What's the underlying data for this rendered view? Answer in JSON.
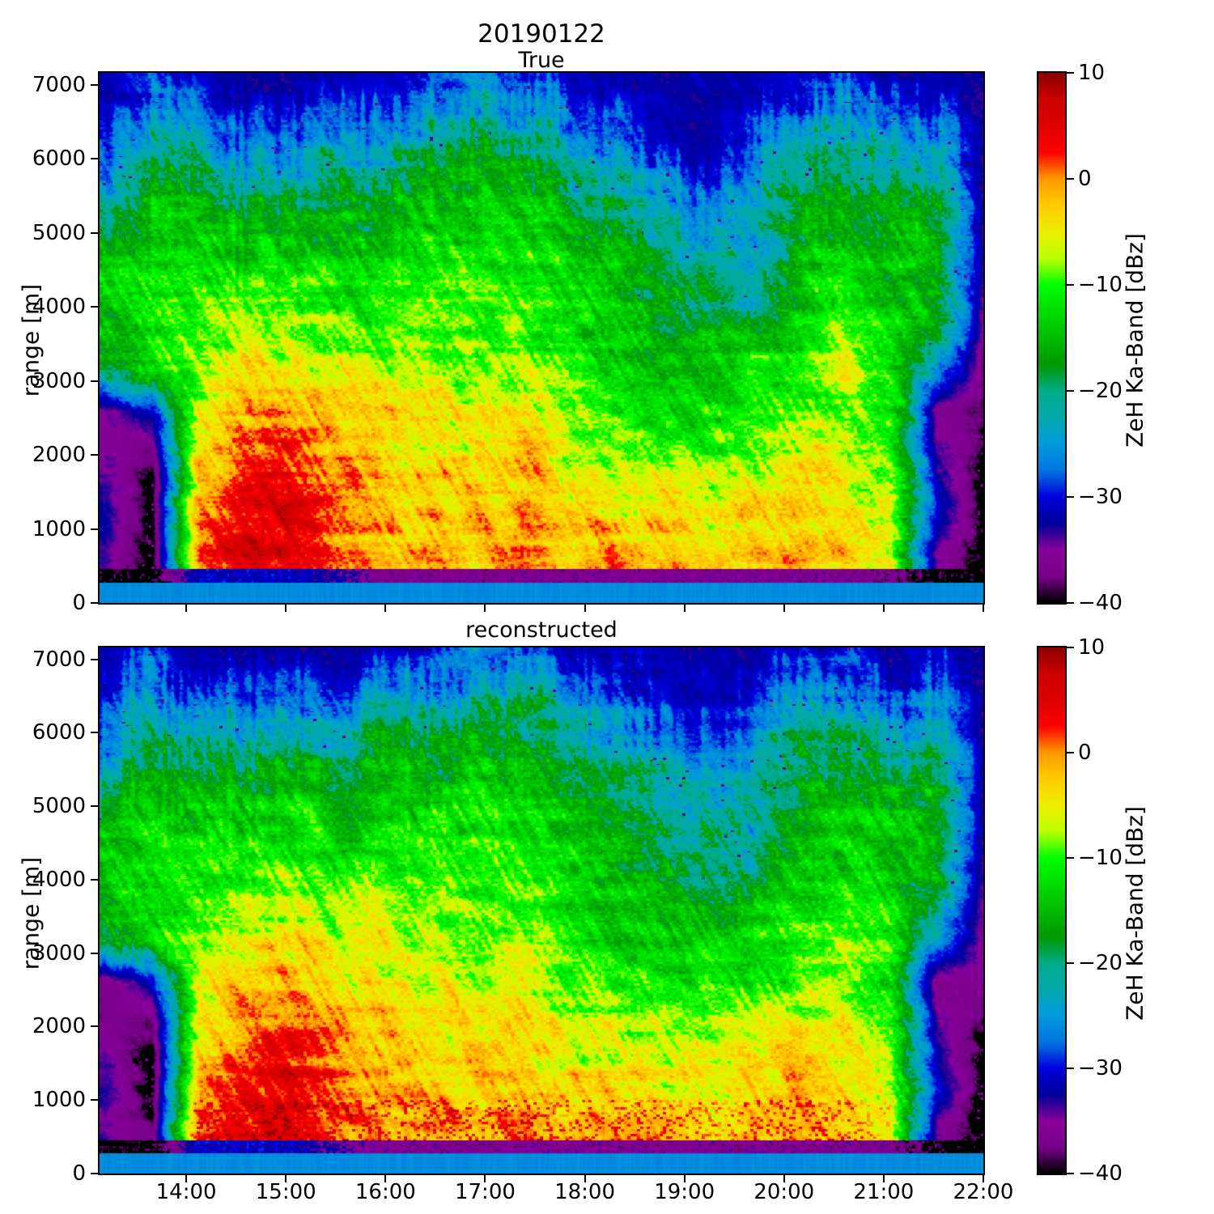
{
  "title": "20190122",
  "panels": [
    {
      "subtitle": "True",
      "ylabel": "range [m]"
    },
    {
      "subtitle": "reconstructed",
      "ylabel": "range [m]"
    }
  ],
  "axes": {
    "ytick_values": [
      0,
      1000,
      2000,
      3000,
      4000,
      5000,
      6000,
      7000
    ],
    "ytick_labels": [
      "0",
      "1000",
      "2000",
      "3000",
      "4000",
      "5000",
      "6000",
      "7000"
    ],
    "xtick_hours": [
      14,
      15,
      16,
      17,
      18,
      19,
      20,
      21,
      22
    ],
    "xtick_labels": [
      "14:00",
      "15:00",
      "16:00",
      "17:00",
      "18:00",
      "19:00",
      "20:00",
      "21:00",
      "22:00"
    ]
  },
  "colorbar": {
    "label": "ZeH Ka-Band [dBz]",
    "vmin": -40,
    "vmax": 10,
    "tick_values": [
      10,
      0,
      -10,
      -20,
      -30,
      -40
    ],
    "tick_labels": [
      "10",
      "0",
      "−10",
      "−20",
      "−30",
      "−40"
    ],
    "stops": [
      [
        -40,
        "#000000"
      ],
      [
        -37.5,
        "#770088"
      ],
      [
        -35,
        "#880099"
      ],
      [
        -32.5,
        "#000099"
      ],
      [
        -30,
        "#0000dd"
      ],
      [
        -27.5,
        "#0077dd"
      ],
      [
        -25,
        "#0099dd"
      ],
      [
        -22.5,
        "#00aaaa"
      ],
      [
        -20,
        "#00aa88"
      ],
      [
        -17.5,
        "#009900"
      ],
      [
        -15,
        "#00bb00"
      ],
      [
        -12.5,
        "#00dd00"
      ],
      [
        -10,
        "#00ff00"
      ],
      [
        -7.5,
        "#bbff00"
      ],
      [
        -5,
        "#eeee00"
      ],
      [
        -2.5,
        "#ffcc00"
      ],
      [
        0,
        "#ff9900"
      ],
      [
        2.5,
        "#ff0000"
      ],
      [
        5,
        "#dd0000"
      ],
      [
        7.5,
        "#cc0000"
      ],
      [
        10,
        "#8b0000"
      ]
    ]
  },
  "chart_data": {
    "type": "heatmap",
    "title": "20190122",
    "xlabel_ticks": [
      "14:00",
      "15:00",
      "16:00",
      "17:00",
      "18:00",
      "19:00",
      "20:00",
      "21:00",
      "22:00"
    ],
    "ylabel": "range [m]",
    "value_label": "ZeH Ka-Band [dBz]",
    "x_range_hours": [
      13.13,
      22.0
    ],
    "y_range_m": [
      0,
      7160
    ],
    "value_range_dbz": [
      -40,
      10
    ],
    "x_time_hours": [
      13.2,
      13.66,
      14.13,
      14.59,
      15.05,
      15.52,
      15.98,
      16.44,
      16.91,
      17.37,
      17.83,
      18.29,
      18.76,
      19.22,
      19.68,
      20.15,
      20.61,
      21.07,
      21.54,
      22.0
    ],
    "y_height_m": [
      150,
      400,
      700,
      1100,
      1600,
      2100,
      2600,
      3100,
      3700,
      4300,
      4900,
      5500,
      6200,
      7000
    ],
    "panels": [
      {
        "name": "True",
        "values_dbz": [
          [
            -26,
            -26,
            -26,
            -26,
            -26,
            -26,
            -26,
            -26,
            -26,
            -26,
            -26,
            -26,
            -26,
            -26,
            -26,
            -26,
            -26,
            -26,
            -26,
            -26
          ],
          [
            -40,
            -40,
            -31,
            -31,
            -31,
            -33,
            -36,
            -36,
            -36,
            -36,
            -36,
            -36,
            -36,
            -36,
            -36,
            -36,
            -36,
            -37,
            -40,
            -40
          ],
          [
            -34,
            -40,
            1,
            6,
            6,
            1,
            -1,
            -1,
            -2,
            0,
            -2,
            -1,
            -2,
            -3,
            -2,
            -1,
            -3,
            -6,
            -35,
            -40
          ],
          [
            -32,
            -40,
            0,
            5,
            6,
            1,
            -2,
            -2,
            -2,
            -1,
            -3,
            -3,
            -4,
            -5,
            -3,
            -2,
            -4,
            -6,
            -30,
            -40
          ],
          [
            -34,
            -40,
            -2,
            3,
            5,
            0,
            -2,
            -3,
            -3,
            -2,
            -5,
            -5,
            -6,
            -7,
            -5,
            -4,
            -5,
            -8,
            -32,
            -40
          ],
          [
            -36,
            -37,
            -4,
            1,
            3,
            -1,
            -3,
            -4,
            -4,
            -3,
            -7,
            -8,
            -9,
            -10,
            -8,
            -6,
            -6,
            -10,
            -34,
            -39
          ],
          [
            -35,
            -30,
            -6,
            -1,
            0,
            -3,
            -4,
            -5,
            -6,
            -5,
            -9,
            -11,
            -13,
            -13,
            -11,
            -9,
            -7,
            -12,
            -36,
            -38
          ],
          [
            -20,
            -14,
            -7,
            -4,
            -5,
            -6,
            -6,
            -6,
            -8,
            -7,
            -10,
            -13,
            -15,
            -14,
            -13,
            -11,
            -6,
            -11,
            -26,
            -37
          ],
          [
            -15,
            -13,
            -9,
            -8,
            -8,
            -9,
            -9,
            -8,
            -9,
            -9,
            -12,
            -14,
            -16,
            -16,
            -15,
            -13,
            -9,
            -12,
            -18,
            -35
          ],
          [
            -14,
            -12,
            -11,
            -11,
            -11,
            -12,
            -11,
            -10,
            -10,
            -11,
            -13,
            -15,
            -18,
            -19,
            -24,
            -14,
            -12,
            -14,
            -16,
            -34
          ],
          [
            -16,
            -14,
            -14,
            -14,
            -14,
            -15,
            -14,
            -12,
            -12,
            -13,
            -15,
            -17,
            -20,
            -22,
            -24,
            -16,
            -14,
            -15,
            -15,
            -33
          ],
          [
            -22,
            -17,
            -17,
            -19,
            -18,
            -18,
            -17,
            -15,
            -14,
            -15,
            -17,
            -20,
            -24,
            -27,
            -22,
            -18,
            -16,
            -17,
            -17,
            -33
          ],
          [
            -28,
            -21,
            -25,
            -27,
            -26,
            -25,
            -22,
            -20,
            -17,
            -20,
            -23,
            -27,
            -31,
            -32,
            -27,
            -21,
            -20,
            -25,
            -23,
            -33
          ],
          [
            -32,
            -29,
            -32,
            -32,
            -32,
            -32,
            -31,
            -29,
            -26,
            -29,
            -31,
            -32,
            -32,
            -32,
            -32,
            -30,
            -29,
            -32,
            -31,
            -33
          ]
        ]
      },
      {
        "name": "reconstructed",
        "values_dbz": [
          [
            -26,
            -26,
            -26,
            -26,
            -26,
            -26,
            -26,
            -26,
            -26,
            -26,
            -26,
            -26,
            -26,
            -26,
            -26,
            -26,
            -26,
            -26,
            -26,
            -26
          ],
          [
            -40,
            -40,
            -31,
            -31,
            -31,
            -34,
            -36,
            -36,
            -36,
            -36,
            -36,
            -36,
            -36,
            -36,
            -36,
            -36,
            -36,
            -36,
            -40,
            -40
          ],
          [
            -34,
            -38,
            2,
            5,
            5,
            2,
            0,
            0,
            -1,
            1,
            -1,
            0,
            -1,
            -2,
            -1,
            0,
            -2,
            -5,
            -35,
            -40
          ],
          [
            -33,
            -40,
            0,
            4,
            5,
            1,
            -1,
            -2,
            -2,
            -1,
            -3,
            -3,
            -4,
            -4,
            -3,
            -2,
            -4,
            -6,
            -30,
            -40
          ],
          [
            -34,
            -40,
            -2,
            2,
            4,
            0,
            -2,
            -3,
            -3,
            -2,
            -5,
            -5,
            -6,
            -6,
            -5,
            -4,
            -5,
            -8,
            -32,
            -40
          ],
          [
            -37,
            -37,
            -4,
            0,
            2,
            -1,
            -3,
            -4,
            -4,
            -3,
            -7,
            -8,
            -9,
            -9,
            -8,
            -6,
            -6,
            -10,
            -34,
            -38
          ],
          [
            -36,
            -31,
            -6,
            -2,
            -1,
            -3,
            -5,
            -5,
            -6,
            -5,
            -9,
            -11,
            -12,
            -12,
            -11,
            -9,
            -7,
            -12,
            -36,
            -37
          ],
          [
            -21,
            -15,
            -7,
            -5,
            -5,
            -6,
            -6,
            -6,
            -8,
            -7,
            -10,
            -13,
            -14,
            -14,
            -13,
            -11,
            -7,
            -11,
            -26,
            -36
          ],
          [
            -15,
            -13,
            -9,
            -8,
            -8,
            -9,
            -9,
            -8,
            -9,
            -9,
            -12,
            -14,
            -16,
            -16,
            -15,
            -13,
            -9,
            -12,
            -18,
            -35
          ],
          [
            -14,
            -12,
            -11,
            -11,
            -11,
            -12,
            -11,
            -10,
            -10,
            -11,
            -13,
            -15,
            -18,
            -19,
            -22,
            -14,
            -12,
            -14,
            -16,
            -34
          ],
          [
            -16,
            -14,
            -14,
            -14,
            -14,
            -15,
            -14,
            -12,
            -12,
            -13,
            -15,
            -17,
            -20,
            -22,
            -23,
            -16,
            -14,
            -15,
            -15,
            -33
          ],
          [
            -22,
            -17,
            -17,
            -19,
            -18,
            -18,
            -17,
            -15,
            -14,
            -15,
            -17,
            -20,
            -24,
            -26,
            -22,
            -18,
            -16,
            -17,
            -17,
            -33
          ],
          [
            -28,
            -21,
            -25,
            -27,
            -26,
            -25,
            -22,
            -20,
            -17,
            -20,
            -23,
            -27,
            -30,
            -31,
            -27,
            -21,
            -20,
            -25,
            -23,
            -33
          ],
          [
            -32,
            -29,
            -32,
            -32,
            -32,
            -32,
            -31,
            -29,
            -26,
            -29,
            -31,
            -32,
            -32,
            -32,
            -32,
            -30,
            -29,
            -32,
            -31,
            -33
          ]
        ]
      }
    ]
  }
}
